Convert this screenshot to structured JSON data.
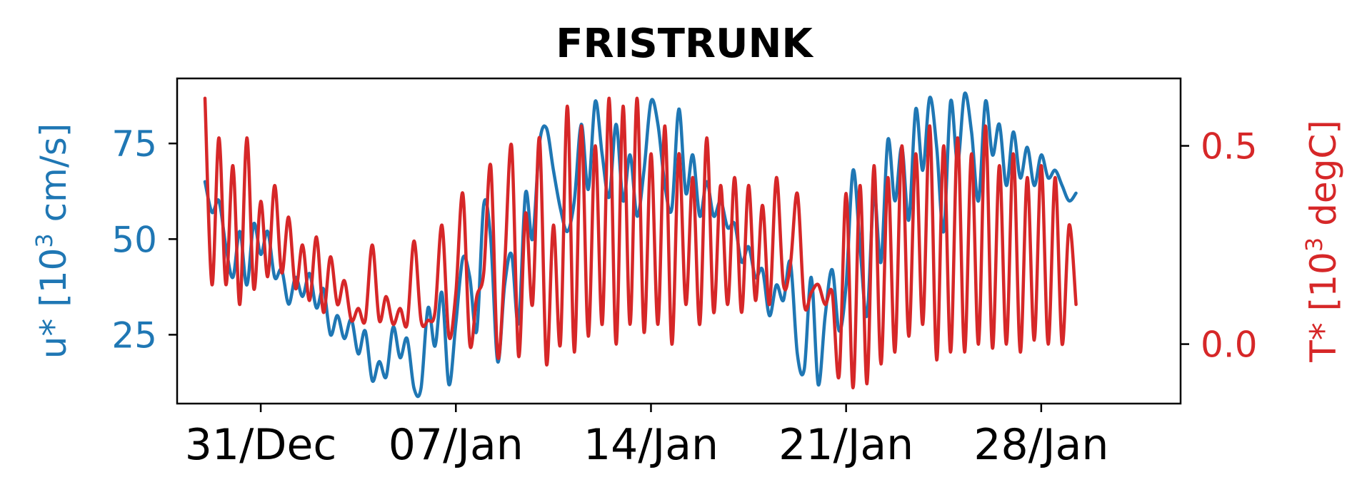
{
  "chart_data": {
    "type": "line",
    "title": "FRISTRUNK",
    "x_range": [
      "2023-12-28",
      "2024-02-02"
    ],
    "x_ticks": [
      {
        "date": "2023-12-31",
        "label": "31/Dec"
      },
      {
        "date": "2024-01-07",
        "label": "07/Jan"
      },
      {
        "date": "2024-01-14",
        "label": "14/Jan"
      },
      {
        "date": "2024-01-21",
        "label": "21/Jan"
      },
      {
        "date": "2024-01-28",
        "label": "28/Jan"
      }
    ],
    "y_left": {
      "label_main": "u* [10",
      "label_sup": "3",
      "label_end": " cm/s]",
      "color": "#1f77b4",
      "range": [
        7,
        92
      ],
      "ticks": [
        {
          "v": 25,
          "label": "25"
        },
        {
          "v": 50,
          "label": "50"
        },
        {
          "v": 75,
          "label": "75"
        }
      ]
    },
    "y_right": {
      "label_main": "T* [10",
      "label_sup": "3",
      "label_end": " degC]",
      "color": "#d62728",
      "range": [
        -0.15,
        0.67
      ],
      "ticks": [
        {
          "v": 0.0,
          "label": "0.0"
        },
        {
          "v": 0.5,
          "label": "0.5"
        }
      ]
    },
    "series": [
      {
        "axis": "left",
        "color": "#1f77b4",
        "points": [
          [
            "2023-12-29T00:00",
            65
          ],
          [
            "2023-12-29T06:00",
            57
          ],
          [
            "2023-12-29T12:00",
            60
          ],
          [
            "2023-12-29T18:00",
            48
          ],
          [
            "2023-12-30T00:00",
            40
          ],
          [
            "2023-12-30T06:00",
            52
          ],
          [
            "2023-12-30T12:00",
            38
          ],
          [
            "2023-12-30T18:00",
            54
          ],
          [
            "2023-12-31T00:00",
            46
          ],
          [
            "2023-12-31T06:00",
            52
          ],
          [
            "2023-12-31T12:00",
            40
          ],
          [
            "2023-12-31T18:00",
            42
          ],
          [
            "2024-01-01T00:00",
            33
          ],
          [
            "2024-01-01T06:00",
            40
          ],
          [
            "2024-01-01T12:00",
            35
          ],
          [
            "2024-01-01T18:00",
            41
          ],
          [
            "2024-01-02T00:00",
            32
          ],
          [
            "2024-01-02T06:00",
            37
          ],
          [
            "2024-01-02T12:00",
            25
          ],
          [
            "2024-01-02T18:00",
            30
          ],
          [
            "2024-01-03T00:00",
            24
          ],
          [
            "2024-01-03T06:00",
            29
          ],
          [
            "2024-01-03T12:00",
            20
          ],
          [
            "2024-01-03T18:00",
            26
          ],
          [
            "2024-01-04T00:00",
            13
          ],
          [
            "2024-01-04T06:00",
            18
          ],
          [
            "2024-01-04T12:00",
            14
          ],
          [
            "2024-01-04T18:00",
            27
          ],
          [
            "2024-01-05T00:00",
            19
          ],
          [
            "2024-01-05T06:00",
            24
          ],
          [
            "2024-01-05T12:00",
            11
          ],
          [
            "2024-01-05T18:00",
            11
          ],
          [
            "2024-01-06T00:00",
            32
          ],
          [
            "2024-01-06T06:00",
            22
          ],
          [
            "2024-01-06T12:00",
            36
          ],
          [
            "2024-01-06T18:00",
            12
          ],
          [
            "2024-01-07T00:00",
            28
          ],
          [
            "2024-01-07T06:00",
            45
          ],
          [
            "2024-01-07T12:00",
            40
          ],
          [
            "2024-01-07T18:00",
            26
          ],
          [
            "2024-01-08T00:00",
            59
          ],
          [
            "2024-01-08T06:00",
            50
          ],
          [
            "2024-01-08T12:00",
            18
          ],
          [
            "2024-01-08T18:00",
            38
          ],
          [
            "2024-01-09T00:00",
            46
          ],
          [
            "2024-01-09T06:00",
            28
          ],
          [
            "2024-01-09T12:00",
            62
          ],
          [
            "2024-01-09T18:00",
            50
          ],
          [
            "2024-01-10T00:00",
            75
          ],
          [
            "2024-01-10T06:00",
            79
          ],
          [
            "2024-01-10T12:00",
            68
          ],
          [
            "2024-01-10T18:00",
            58
          ],
          [
            "2024-01-11T00:00",
            52
          ],
          [
            "2024-01-11T06:00",
            60
          ],
          [
            "2024-01-11T12:00",
            80
          ],
          [
            "2024-01-11T18:00",
            63
          ],
          [
            "2024-01-12T00:00",
            86
          ],
          [
            "2024-01-12T06:00",
            72
          ],
          [
            "2024-01-12T12:00",
            61
          ],
          [
            "2024-01-12T18:00",
            80
          ],
          [
            "2024-01-13T00:00",
            60
          ],
          [
            "2024-01-13T06:00",
            72
          ],
          [
            "2024-01-13T12:00",
            56
          ],
          [
            "2024-01-13T18:00",
            68
          ],
          [
            "2024-01-14T00:00",
            86
          ],
          [
            "2024-01-14T06:00",
            80
          ],
          [
            "2024-01-14T12:00",
            64
          ],
          [
            "2024-01-14T18:00",
            58
          ],
          [
            "2024-01-15T00:00",
            84
          ],
          [
            "2024-01-15T06:00",
            62
          ],
          [
            "2024-01-15T12:00",
            72
          ],
          [
            "2024-01-15T18:00",
            56
          ],
          [
            "2024-01-16T00:00",
            65
          ],
          [
            "2024-01-16T06:00",
            56
          ],
          [
            "2024-01-16T12:00",
            60
          ],
          [
            "2024-01-16T18:00",
            53
          ],
          [
            "2024-01-17T00:00",
            54
          ],
          [
            "2024-01-17T06:00",
            44
          ],
          [
            "2024-01-17T12:00",
            48
          ],
          [
            "2024-01-17T18:00",
            40
          ],
          [
            "2024-01-18T00:00",
            42
          ],
          [
            "2024-01-18T06:00",
            30
          ],
          [
            "2024-01-18T12:00",
            38
          ],
          [
            "2024-01-18T18:00",
            34
          ],
          [
            "2024-01-19T00:00",
            44
          ],
          [
            "2024-01-19T06:00",
            20
          ],
          [
            "2024-01-19T12:00",
            16
          ],
          [
            "2024-01-19T18:00",
            40
          ],
          [
            "2024-01-20T00:00",
            12
          ],
          [
            "2024-01-20T06:00",
            30
          ],
          [
            "2024-01-20T12:00",
            42
          ],
          [
            "2024-01-20T18:00",
            26
          ],
          [
            "2024-01-21T00:00",
            38
          ],
          [
            "2024-01-21T06:00",
            68
          ],
          [
            "2024-01-21T12:00",
            48
          ],
          [
            "2024-01-21T18:00",
            30
          ],
          [
            "2024-01-22T00:00",
            62
          ],
          [
            "2024-01-22T06:00",
            44
          ],
          [
            "2024-01-22T12:00",
            76
          ],
          [
            "2024-01-22T18:00",
            60
          ],
          [
            "2024-01-23T00:00",
            74
          ],
          [
            "2024-01-23T06:00",
            55
          ],
          [
            "2024-01-23T12:00",
            84
          ],
          [
            "2024-01-23T18:00",
            68
          ],
          [
            "2024-01-24T00:00",
            87
          ],
          [
            "2024-01-24T06:00",
            74
          ],
          [
            "2024-01-24T12:00",
            52
          ],
          [
            "2024-01-24T18:00",
            86
          ],
          [
            "2024-01-25T00:00",
            70
          ],
          [
            "2024-01-25T06:00",
            88
          ],
          [
            "2024-01-25T12:00",
            78
          ],
          [
            "2024-01-25T18:00",
            60
          ],
          [
            "2024-01-26T00:00",
            86
          ],
          [
            "2024-01-26T06:00",
            72
          ],
          [
            "2024-01-26T12:00",
            80
          ],
          [
            "2024-01-26T18:00",
            64
          ],
          [
            "2024-01-27T00:00",
            78
          ],
          [
            "2024-01-27T06:00",
            66
          ],
          [
            "2024-01-27T12:00",
            74
          ],
          [
            "2024-01-27T18:00",
            64
          ],
          [
            "2024-01-28T00:00",
            72
          ],
          [
            "2024-01-28T06:00",
            66
          ],
          [
            "2024-01-28T12:00",
            68
          ],
          [
            "2024-01-28T18:00",
            64
          ],
          [
            "2024-01-29T00:00",
            60
          ],
          [
            "2024-01-29T06:00",
            62
          ]
        ]
      },
      {
        "axis": "right",
        "color": "#d62728",
        "points": [
          [
            "2023-12-29T00:00",
            0.62
          ],
          [
            "2023-12-29T06:00",
            0.15
          ],
          [
            "2023-12-29T12:00",
            0.52
          ],
          [
            "2023-12-29T18:00",
            0.15
          ],
          [
            "2023-12-30T00:00",
            0.45
          ],
          [
            "2023-12-30T06:00",
            0.1
          ],
          [
            "2023-12-30T12:00",
            0.52
          ],
          [
            "2023-12-30T18:00",
            0.14
          ],
          [
            "2023-12-31T00:00",
            0.36
          ],
          [
            "2023-12-31T06:00",
            0.17
          ],
          [
            "2023-12-31T12:00",
            0.4
          ],
          [
            "2023-12-31T18:00",
            0.18
          ],
          [
            "2024-01-01T00:00",
            0.32
          ],
          [
            "2024-01-01T06:00",
            0.14
          ],
          [
            "2024-01-01T12:00",
            0.25
          ],
          [
            "2024-01-01T18:00",
            0.11
          ],
          [
            "2024-01-02T00:00",
            0.27
          ],
          [
            "2024-01-02T06:00",
            0.08
          ],
          [
            "2024-01-02T12:00",
            0.22
          ],
          [
            "2024-01-02T18:00",
            0.1
          ],
          [
            "2024-01-03T00:00",
            0.16
          ],
          [
            "2024-01-03T06:00",
            0.06
          ],
          [
            "2024-01-03T12:00",
            0.09
          ],
          [
            "2024-01-03T18:00",
            0.06
          ],
          [
            "2024-01-04T00:00",
            0.25
          ],
          [
            "2024-01-04T06:00",
            0.06
          ],
          [
            "2024-01-04T12:00",
            0.12
          ],
          [
            "2024-01-04T18:00",
            0.05
          ],
          [
            "2024-01-05T00:00",
            0.09
          ],
          [
            "2024-01-05T06:00",
            0.05
          ],
          [
            "2024-01-05T12:00",
            0.26
          ],
          [
            "2024-01-05T18:00",
            0.06
          ],
          [
            "2024-01-06T00:00",
            0.06
          ],
          [
            "2024-01-06T06:00",
            0.08
          ],
          [
            "2024-01-06T12:00",
            0.3
          ],
          [
            "2024-01-06T18:00",
            0.02
          ],
          [
            "2024-01-07T00:00",
            0.13
          ],
          [
            "2024-01-07T06:00",
            0.38
          ],
          [
            "2024-01-07T12:00",
            0.0
          ],
          [
            "2024-01-07T18:00",
            0.12
          ],
          [
            "2024-01-08T00:00",
            0.18
          ],
          [
            "2024-01-08T06:00",
            0.45
          ],
          [
            "2024-01-08T12:00",
            -0.03
          ],
          [
            "2024-01-08T18:00",
            0.2
          ],
          [
            "2024-01-09T00:00",
            0.5
          ],
          [
            "2024-01-09T06:00",
            -0.03
          ],
          [
            "2024-01-09T12:00",
            0.33
          ],
          [
            "2024-01-09T18:00",
            0.1
          ],
          [
            "2024-01-10T00:00",
            0.52
          ],
          [
            "2024-01-10T06:00",
            -0.05
          ],
          [
            "2024-01-10T12:00",
            0.3
          ],
          [
            "2024-01-10T18:00",
            0.0
          ],
          [
            "2024-01-11T00:00",
            0.6
          ],
          [
            "2024-01-11T06:00",
            -0.02
          ],
          [
            "2024-01-11T12:00",
            0.55
          ],
          [
            "2024-01-11T18:00",
            0.02
          ],
          [
            "2024-01-12T00:00",
            0.5
          ],
          [
            "2024-01-12T06:00",
            0.05
          ],
          [
            "2024-01-12T12:00",
            0.62
          ],
          [
            "2024-01-12T18:00",
            0.0
          ],
          [
            "2024-01-13T00:00",
            0.6
          ],
          [
            "2024-01-13T06:00",
            0.05
          ],
          [
            "2024-01-13T12:00",
            0.62
          ],
          [
            "2024-01-13T18:00",
            0.03
          ],
          [
            "2024-01-14T00:00",
            0.48
          ],
          [
            "2024-01-14T06:00",
            0.05
          ],
          [
            "2024-01-14T12:00",
            0.55
          ],
          [
            "2024-01-14T18:00",
            0.0
          ],
          [
            "2024-01-15T00:00",
            0.48
          ],
          [
            "2024-01-15T06:00",
            0.1
          ],
          [
            "2024-01-15T12:00",
            0.42
          ],
          [
            "2024-01-15T18:00",
            0.05
          ],
          [
            "2024-01-16T00:00",
            0.52
          ],
          [
            "2024-01-16T06:00",
            0.08
          ],
          [
            "2024-01-16T12:00",
            0.4
          ],
          [
            "2024-01-16T18:00",
            0.1
          ],
          [
            "2024-01-17T00:00",
            0.42
          ],
          [
            "2024-01-17T06:00",
            0.08
          ],
          [
            "2024-01-17T12:00",
            0.4
          ],
          [
            "2024-01-17T18:00",
            0.11
          ],
          [
            "2024-01-18T00:00",
            0.35
          ],
          [
            "2024-01-18T06:00",
            0.1
          ],
          [
            "2024-01-18T12:00",
            0.42
          ],
          [
            "2024-01-18T18:00",
            0.15
          ],
          [
            "2024-01-19T00:00",
            0.2
          ],
          [
            "2024-01-19T06:00",
            0.38
          ],
          [
            "2024-01-19T12:00",
            0.1
          ],
          [
            "2024-01-19T18:00",
            0.13
          ],
          [
            "2024-01-20T00:00",
            0.15
          ],
          [
            "2024-01-20T06:00",
            0.1
          ],
          [
            "2024-01-20T12:00",
            0.13
          ],
          [
            "2024-01-20T18:00",
            -0.08
          ],
          [
            "2024-01-21T00:00",
            0.38
          ],
          [
            "2024-01-21T06:00",
            -0.11
          ],
          [
            "2024-01-21T12:00",
            0.4
          ],
          [
            "2024-01-21T18:00",
            -0.1
          ],
          [
            "2024-01-22T00:00",
            0.45
          ],
          [
            "2024-01-22T06:00",
            -0.05
          ],
          [
            "2024-01-22T12:00",
            0.42
          ],
          [
            "2024-01-22T18:00",
            -0.02
          ],
          [
            "2024-01-23T00:00",
            0.5
          ],
          [
            "2024-01-23T06:00",
            0.02
          ],
          [
            "2024-01-23T12:00",
            0.48
          ],
          [
            "2024-01-23T18:00",
            0.05
          ],
          [
            "2024-01-24T00:00",
            0.55
          ],
          [
            "2024-01-24T06:00",
            -0.04
          ],
          [
            "2024-01-24T12:00",
            0.5
          ],
          [
            "2024-01-24T18:00",
            -0.02
          ],
          [
            "2024-01-25T00:00",
            0.52
          ],
          [
            "2024-01-25T06:00",
            -0.02
          ],
          [
            "2024-01-25T12:00",
            0.48
          ],
          [
            "2024-01-25T18:00",
            0.0
          ],
          [
            "2024-01-26T00:00",
            0.55
          ],
          [
            "2024-01-26T06:00",
            -0.01
          ],
          [
            "2024-01-26T12:00",
            0.45
          ],
          [
            "2024-01-26T18:00",
            0.0
          ],
          [
            "2024-01-27T00:00",
            0.48
          ],
          [
            "2024-01-27T06:00",
            -0.02
          ],
          [
            "2024-01-27T12:00",
            0.42
          ],
          [
            "2024-01-27T18:00",
            0.01
          ],
          [
            "2024-01-28T00:00",
            0.45
          ],
          [
            "2024-01-28T06:00",
            0.0
          ],
          [
            "2024-01-28T12:00",
            0.42
          ],
          [
            "2024-01-28T18:00",
            0.0
          ],
          [
            "2024-01-29T00:00",
            0.3
          ],
          [
            "2024-01-29T06:00",
            0.1
          ]
        ]
      }
    ]
  }
}
